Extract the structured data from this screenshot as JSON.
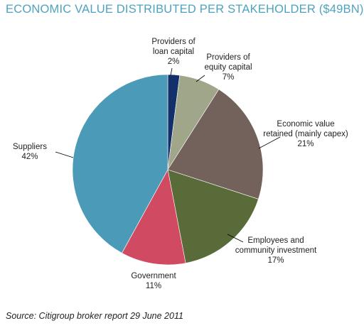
{
  "chart_data": {
    "type": "pie",
    "title": "ECONOMIC VALUE DISTRIBUTED PER STAKEHOLDER ($49BN)",
    "slices": [
      {
        "label_lines": [
          "Providers of",
          "loan capital"
        ],
        "pct_label": "2%",
        "value": 2,
        "color": "#13306b"
      },
      {
        "label_lines": [
          "Providers of",
          "equity capital"
        ],
        "pct_label": "7%",
        "value": 7,
        "color": "#a0a68a"
      },
      {
        "label_lines": [
          "Economic value",
          "retained (mainly capex)"
        ],
        "pct_label": "21%",
        "value": 21,
        "color": "#73625b"
      },
      {
        "label_lines": [
          "Employees and",
          "community investment"
        ],
        "pct_label": "17%",
        "value": 17,
        "color": "#5a6b3a"
      },
      {
        "label_lines": [
          "Government"
        ],
        "pct_label": "11%",
        "value": 11,
        "color": "#d04a62"
      },
      {
        "label_lines": [
          "Suppliers"
        ],
        "pct_label": "42%",
        "value": 42,
        "color": "#4b9ab7"
      }
    ]
  },
  "colors": {
    "title": "#4da3bf",
    "leader_line": "#000000"
  },
  "source": "Source: Citigroup broker report 29 June 2011"
}
